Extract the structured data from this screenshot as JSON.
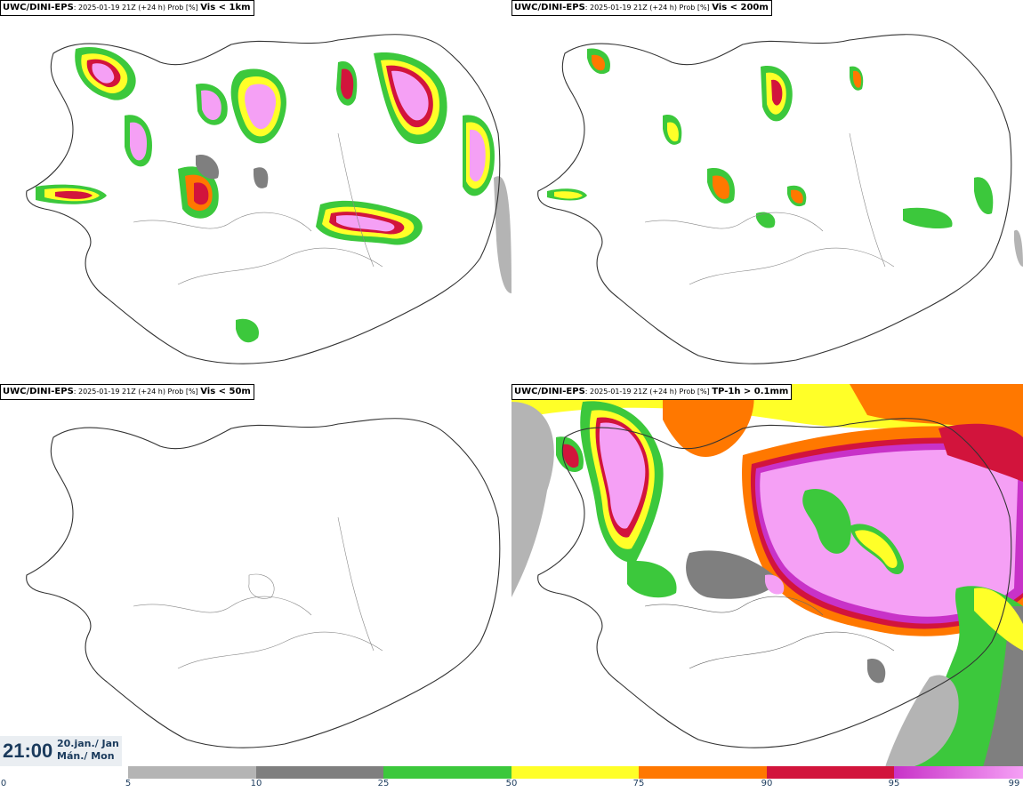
{
  "panels": [
    {
      "model": "UWC/DINI-EPS",
      "meta": ": 2025-01-19 21Z (+24 h) Prob [%] ",
      "variable": "Vis < 1km"
    },
    {
      "model": "UWC/DINI-EPS",
      "meta": ": 2025-01-19 21Z (+24 h) Prob [%] ",
      "variable": "Vis < 200m"
    },
    {
      "model": "UWC/DINI-EPS",
      "meta": ": 2025-01-19 21Z (+24 h) Prob [%] ",
      "variable": "Vis < 50m"
    },
    {
      "model": "UWC/DINI-EPS",
      "meta": ": 2025-01-19 21Z (+24 h) Prob [%] ",
      "variable": "TP-1h > 0.1mm"
    }
  ],
  "valid_time": {
    "time": "21:00",
    "date": "20.jan./ Jan",
    "weekday": "Mán./ Mon"
  },
  "colorbar": {
    "ticks": [
      "0",
      "5",
      "10",
      "25",
      "50",
      "75",
      "90",
      "95",
      "99"
    ],
    "colors": [
      "#ffffff",
      "#b4b4b4",
      "#7f7f7f",
      "#3cc83c",
      "#ffff28",
      "#ff7800",
      "#d2143c",
      "#c832c8",
      "#f5a0f5"
    ]
  },
  "legend_colors": {
    "light_gray": "#b4b4b4",
    "dark_gray": "#7f7f7f",
    "green": "#3cc83c",
    "yellow": "#ffff28",
    "orange": "#ff7800",
    "red": "#d2143c",
    "magenta": "#c832c8",
    "pink": "#f5a0f5"
  }
}
